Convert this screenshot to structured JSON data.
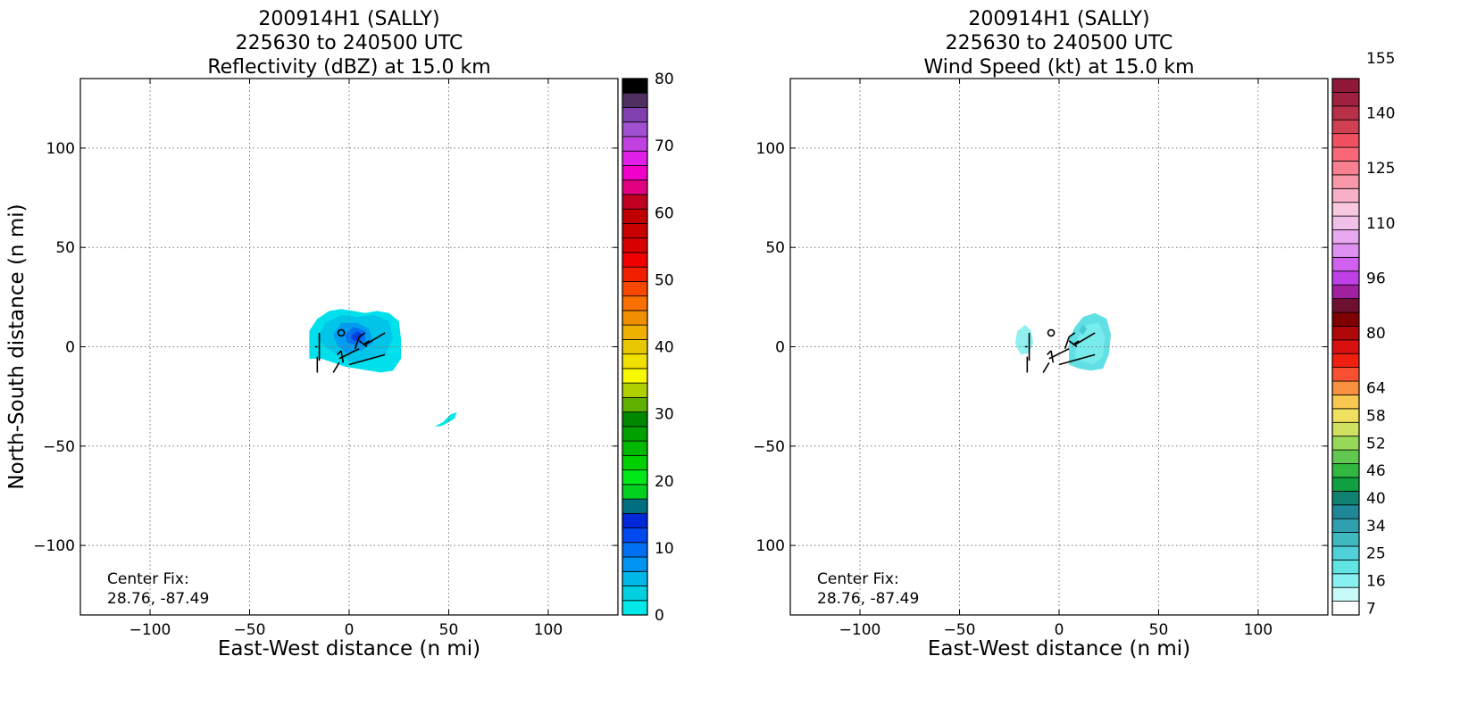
{
  "panels": [
    {
      "title_lines": [
        "200914H1 (SALLY)",
        "225630 to 240500 UTC",
        "Reflectivity (dBZ) at 15.0 km"
      ],
      "xlabel": "East-West distance (n mi)",
      "ylabel": "North-South distance (n mi)",
      "center_fix_label": "Center Fix:",
      "center_fix_value": "28.76, -87.49",
      "colorbar": {
        "colors": [
          "#00e8e8",
          "#00d0e0",
          "#00b8e8",
          "#0094f0",
          "#0070f0",
          "#0048f0",
          "#0028d8",
          "#007080",
          "#00d020",
          "#00e818",
          "#00d000",
          "#00b800",
          "#00a000",
          "#008800",
          "#60b000",
          "#b0d000",
          "#f8f800",
          "#f0e000",
          "#e8c800",
          "#f0b000",
          "#f09000",
          "#f87000",
          "#f84800",
          "#f02000",
          "#f00000",
          "#d80000",
          "#c80000",
          "#c00000",
          "#c00020",
          "#e00080",
          "#f000c8",
          "#e020e8",
          "#c040e0",
          "#a050d0",
          "#8040b0",
          "#503060",
          "#000000"
        ],
        "tick_labels": [
          "0",
          "10",
          "20",
          "30",
          "40",
          "50",
          "60",
          "70",
          "80"
        ],
        "tick_values": [
          0,
          10,
          20,
          30,
          40,
          50,
          60,
          70,
          80
        ],
        "range": [
          0,
          80
        ]
      },
      "tracks_color": "#000000"
    },
    {
      "title_lines": [
        "200914H1 (SALLY)",
        "225630 to 240500 UTC",
        "Wind Speed (kt) at 15.0 km"
      ],
      "xlabel": "East-West distance (n mi)",
      "ylabel": "North-South distance (n mi)",
      "center_fix_label": "Center Fix:",
      "center_fix_value": "28.76, -87.49",
      "colorbar": {
        "colors": [
          "#ffffff",
          "#c8fafa",
          "#88f0f0",
          "#60e4e4",
          "#50d0d8",
          "#40b8c0",
          "#30a0b0",
          "#208898",
          "#108070",
          "#10a040",
          "#30b840",
          "#60c850",
          "#98d858",
          "#d0e060",
          "#f0e060",
          "#f8c850",
          "#f89040",
          "#f85030",
          "#f02010",
          "#d81010",
          "#b00808",
          "#800000",
          "#701030",
          "#a020a0",
          "#c040e8",
          "#d060f0",
          "#e090f0",
          "#e8a8f0",
          "#f0c0e8",
          "#f8c8e0",
          "#f8b0c8",
          "#f898a8",
          "#f88090",
          "#f86878",
          "#f05060",
          "#d04050",
          "#b83048",
          "#a02040",
          "#901838"
        ],
        "tick_labels": [
          "7",
          "16",
          "25",
          "34",
          "40",
          "46",
          "52",
          "58",
          "64",
          "80",
          "96",
          "110",
          "125",
          "140",
          "155"
        ],
        "tick_values": [
          7,
          16,
          25,
          34,
          40,
          46,
          52,
          58,
          64,
          80,
          96,
          110,
          125,
          140,
          155
        ],
        "tick_steps": [
          0,
          2,
          4,
          6,
          8,
          10,
          12,
          14,
          16,
          20,
          24,
          28,
          32,
          36,
          40
        ],
        "range": [
          7,
          165
        ]
      },
      "tracks_color": "#000000"
    }
  ],
  "chart_data": [
    {
      "type": "heatmap",
      "title": "200914H1 (SALLY)\n225630 to 240500 UTC\nReflectivity (dBZ) at 15.0 km",
      "xlabel": "East-West distance (n mi)",
      "ylabel": "North-South distance (n mi)",
      "xlim": [
        -135,
        135
      ],
      "ylim": [
        -135,
        135
      ],
      "xticks": [
        -100,
        -50,
        0,
        50,
        100
      ],
      "yticks": [
        -100,
        -50,
        0,
        50,
        100
      ],
      "grid": true,
      "colorbar_label_unit": "dBZ",
      "colorbar_range": [
        0,
        80
      ],
      "echo_regions": [
        {
          "name": "main echo",
          "x_range": [
            -20,
            25
          ],
          "y_range": [
            -14,
            20
          ],
          "value_range": [
            0,
            14
          ]
        },
        {
          "name": "southeast fragment",
          "x_range": [
            43,
            54
          ],
          "y_range": [
            -40,
            -33
          ],
          "value_range": [
            0,
            4
          ]
        }
      ],
      "center_marker": [
        -4,
        7
      ],
      "annotation": "Center Fix:\n28.76, -87.49"
    },
    {
      "type": "heatmap",
      "title": "200914H1 (SALLY)\n225630 to 240500 UTC\nWind Speed (kt) at 15.0 km",
      "xlabel": "East-West distance (n mi)",
      "ylabel": "North-South distance (n mi)",
      "xlim": [
        -135,
        135
      ],
      "ylim": [
        -135,
        135
      ],
      "xticks": [
        -100,
        -50,
        0,
        50,
        100
      ],
      "yticks": [
        -100,
        -50,
        0,
        50,
        100
      ],
      "grid": true,
      "colorbar_label_unit": "kt",
      "colorbar_range": [
        7,
        165
      ],
      "echo_regions": [
        {
          "name": "main wind region",
          "x_range": [
            5,
            25
          ],
          "y_range": [
            -12,
            17
          ],
          "value_range": [
            14,
            22
          ]
        },
        {
          "name": "west wind fragment",
          "x_range": [
            -22,
            -12
          ],
          "y_range": [
            -4,
            11
          ],
          "value_range": [
            12,
            18
          ]
        }
      ],
      "center_marker": [
        -4,
        7
      ],
      "annotation": "Center Fix:\n28.76, -87.49"
    }
  ]
}
